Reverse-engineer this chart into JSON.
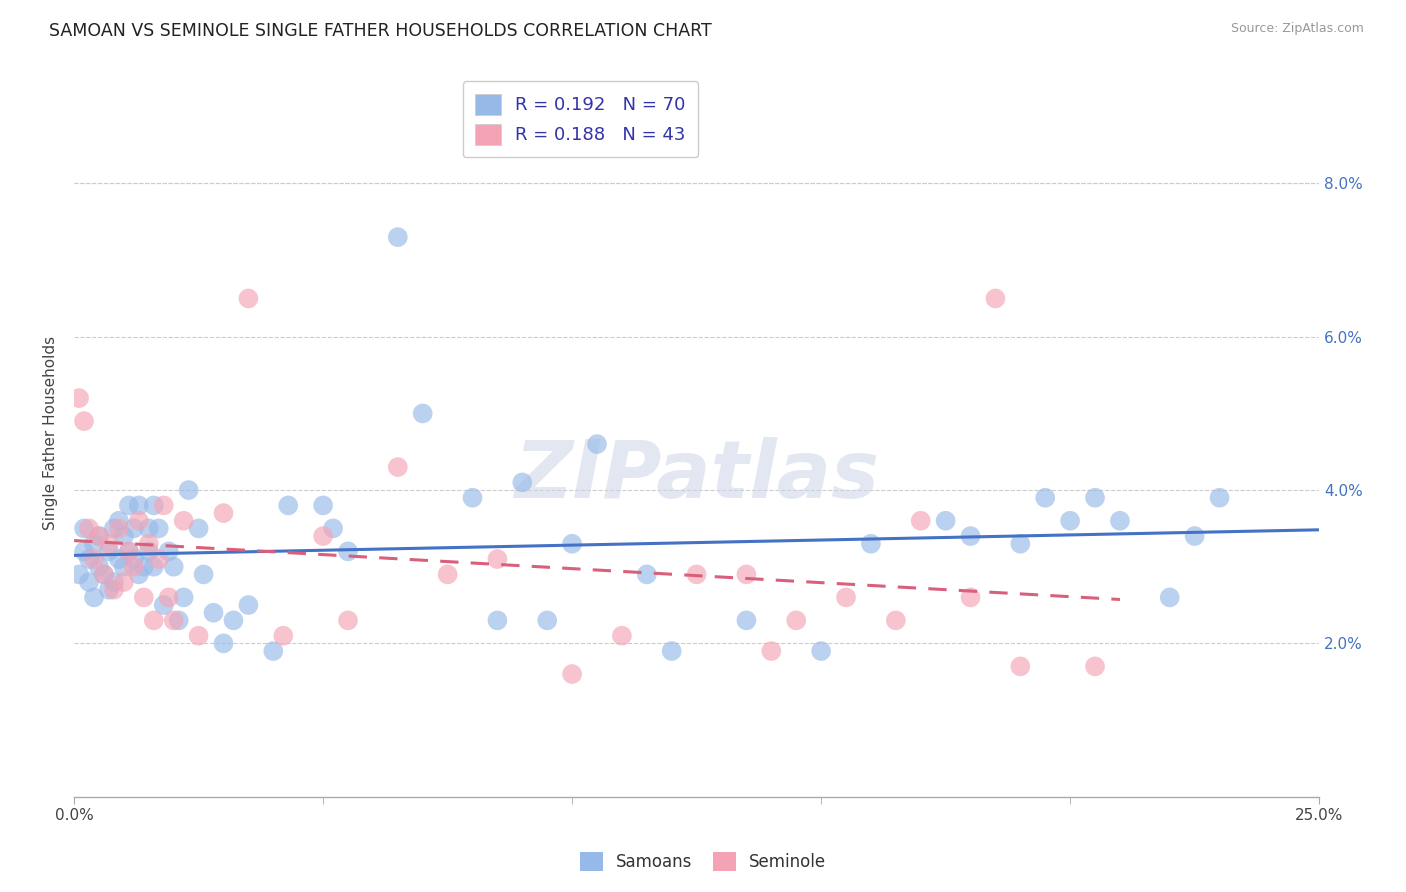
{
  "title": "SAMOAN VS SEMINOLE SINGLE FATHER HOUSEHOLDS CORRELATION CHART",
  "source": "Source: ZipAtlas.com",
  "ylabel": "Single Father Households",
  "x_min": 0.0,
  "x_max": 25.0,
  "y_min": 0.0,
  "y_max": 9.5,
  "ytick_vals": [
    2.0,
    4.0,
    6.0,
    8.0
  ],
  "ytick_labels": [
    "2.0%",
    "4.0%",
    "6.0%",
    "8.0%"
  ],
  "xtick_edge_labels": [
    "0.0%",
    "25.0%"
  ],
  "r_samoan": 0.192,
  "n_samoan": 70,
  "r_seminole": 0.188,
  "n_seminole": 43,
  "samoan_color": "#97b9e8",
  "seminole_color": "#f4a3b5",
  "line_samoan_color": "#4472c4",
  "line_seminole_color": "#d9607a",
  "watermark": "ZIPatlas",
  "legend_label_samoan": "Samoans",
  "legend_label_seminole": "Seminole",
  "samoan_x": [
    0.1,
    0.2,
    0.2,
    0.3,
    0.3,
    0.4,
    0.4,
    0.5,
    0.5,
    0.6,
    0.7,
    0.7,
    0.8,
    0.8,
    0.9,
    0.9,
    1.0,
    1.0,
    1.1,
    1.1,
    1.2,
    1.2,
    1.3,
    1.3,
    1.4,
    1.5,
    1.5,
    1.6,
    1.6,
    1.7,
    1.8,
    1.9,
    2.0,
    2.1,
    2.2,
    2.3,
    2.5,
    2.6,
    2.8,
    3.0,
    3.2,
    3.5,
    4.0,
    4.3,
    5.0,
    5.2,
    5.5,
    6.5,
    7.0,
    8.0,
    8.5,
    9.0,
    9.5,
    10.0,
    10.5,
    11.5,
    12.0,
    13.5,
    15.0,
    16.0,
    17.5,
    18.0,
    19.0,
    19.5,
    20.0,
    20.5,
    21.0,
    22.0,
    22.5,
    23.0
  ],
  "samoan_y": [
    2.9,
    3.2,
    3.5,
    2.8,
    3.1,
    3.3,
    2.6,
    3.0,
    3.4,
    2.9,
    3.2,
    2.7,
    3.5,
    2.8,
    3.1,
    3.6,
    3.0,
    3.4,
    3.2,
    3.8,
    3.1,
    3.5,
    3.8,
    2.9,
    3.0,
    3.2,
    3.5,
    3.8,
    3.0,
    3.5,
    2.5,
    3.2,
    3.0,
    2.3,
    2.6,
    4.0,
    3.5,
    2.9,
    2.4,
    2.0,
    2.3,
    2.5,
    1.9,
    3.8,
    3.8,
    3.5,
    3.2,
    7.3,
    5.0,
    3.9,
    2.3,
    4.1,
    2.3,
    3.3,
    4.6,
    2.9,
    1.9,
    2.3,
    1.9,
    3.3,
    3.6,
    3.4,
    3.3,
    3.9,
    3.6,
    3.9,
    3.6,
    2.6,
    3.4,
    3.9
  ],
  "seminole_x": [
    0.1,
    0.2,
    0.3,
    0.4,
    0.5,
    0.6,
    0.7,
    0.8,
    0.9,
    1.0,
    1.1,
    1.2,
    1.3,
    1.4,
    1.5,
    1.6,
    1.7,
    1.8,
    1.9,
    2.0,
    2.2,
    2.5,
    3.0,
    3.5,
    4.2,
    5.0,
    5.5,
    6.5,
    7.5,
    8.5,
    10.0,
    11.0,
    12.5,
    13.5,
    14.0,
    14.5,
    15.5,
    16.5,
    17.0,
    18.0,
    18.5,
    19.0,
    20.5
  ],
  "seminole_y": [
    5.2,
    4.9,
    3.5,
    3.1,
    3.4,
    2.9,
    3.3,
    2.7,
    3.5,
    2.8,
    3.2,
    3.0,
    3.6,
    2.6,
    3.3,
    2.3,
    3.1,
    3.8,
    2.6,
    2.3,
    3.6,
    2.1,
    3.7,
    6.5,
    2.1,
    3.4,
    2.3,
    4.3,
    2.9,
    3.1,
    1.6,
    2.1,
    2.9,
    2.9,
    1.9,
    2.3,
    2.6,
    2.3,
    3.6,
    2.6,
    6.5,
    1.7,
    1.7
  ]
}
